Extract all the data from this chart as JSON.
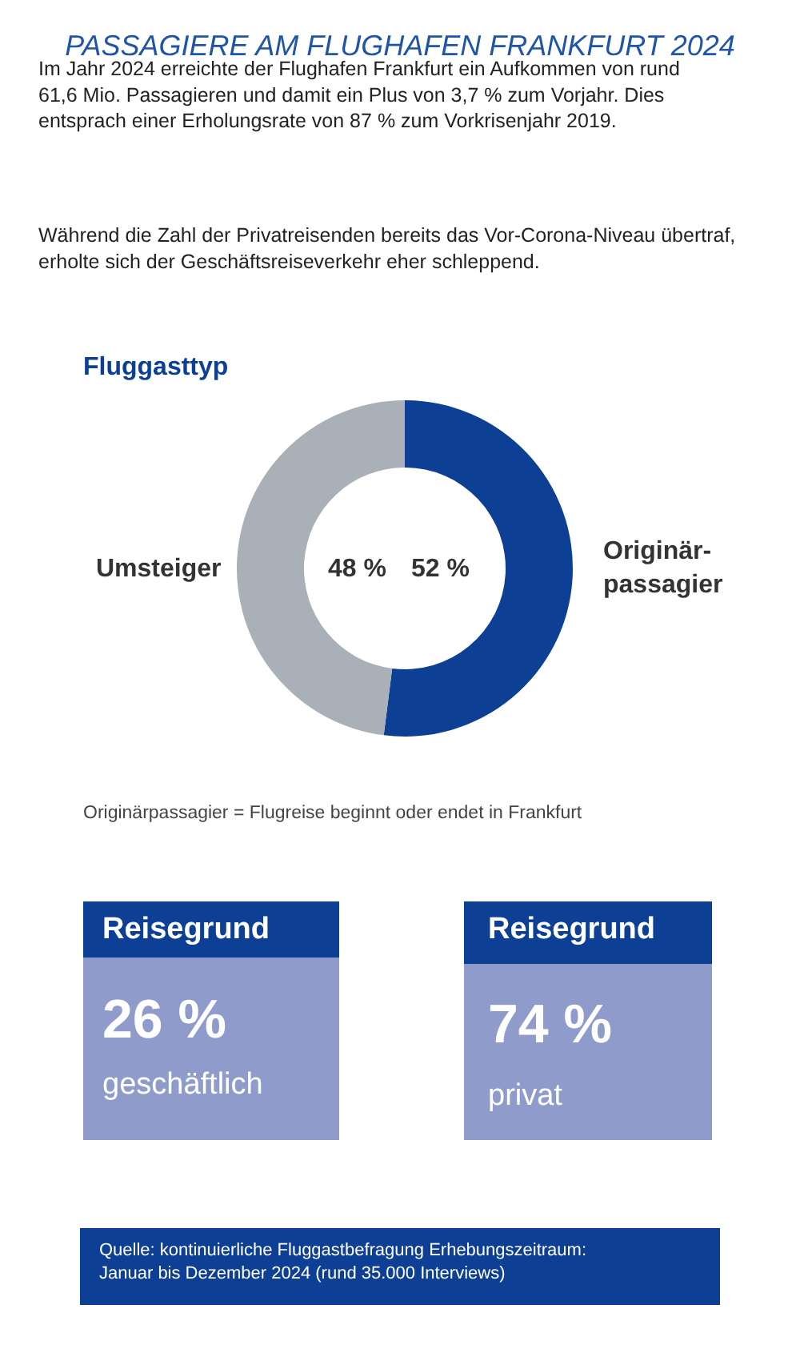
{
  "chart_data": {
    "type": "donut",
    "title": "PASSAGIERE AM FLUGHAFEN FRANKFURT 2024",
    "subtitle": "Fluggasttyp",
    "categories": [
      "Originär-\npassagier",
      "Umsteiger"
    ],
    "values": [
      52,
      48
    ],
    "colors": [
      "#0d3f94",
      "#a9b0b7"
    ],
    "value_labels": [
      "52 %",
      "48 %"
    ],
    "legend": false,
    "annotations": [
      "Im Jahr 2024 erreichte der Flughafen Frankfurt ein Aufkommen von rund 61,6 Mio. Passagieren und damit ein Plus von 3,7 % zum Vorjahr. Dies entsprach einer Erholungsrate von 87 % zum Vorkrisenjahr 2019.",
      "Während die Zahl der Privatreisenden bereits das Vor-Corona-Niveau übertraf, erholte sich der Geschäftsreiseverkehr eher schleppend.",
      "Originärpassagier = Flugreise beginnt oder endet in Frankfurt",
      "Reisegrund",
      "26 %",
      "geschäftlich",
      "Reisegrund",
      "74 %",
      "privat",
      "Quelle: kontinuierliche Fluggastbefragung Erhebungszeitraum: Januar bis Dezember 2024 (rund 35.000 Interviews)"
    ]
  }
}
